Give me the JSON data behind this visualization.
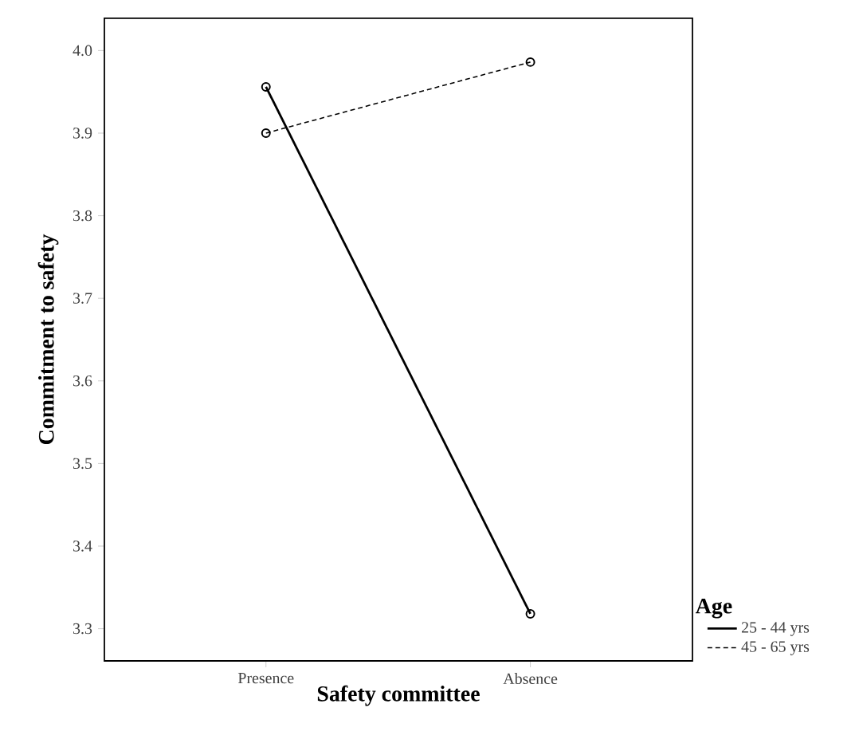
{
  "chart_data": {
    "type": "line",
    "xlabel": "Safety committee",
    "ylabel": "Commitment to safety",
    "legend_title": "Age",
    "categories": [
      "Presence",
      "Absence"
    ],
    "series": [
      {
        "name": "25 - 44 yrs",
        "color": "#000000",
        "values": [
          3.956,
          3.318
        ],
        "line_style": "solid"
      },
      {
        "name": "45 - 65 yrs",
        "color": "#000000",
        "values": [
          3.9,
          3.986
        ],
        "line_style": "dashed"
      }
    ],
    "ylim": [
      3.261,
      4.039
    ],
    "yticks": [
      3.3,
      3.4,
      3.5,
      3.6,
      3.7,
      3.8,
      3.9,
      {
        "value": 4.0,
        "label": "4.0"
      }
    ],
    "marker": "circle",
    "grid": false,
    "legend": "bottom right"
  }
}
